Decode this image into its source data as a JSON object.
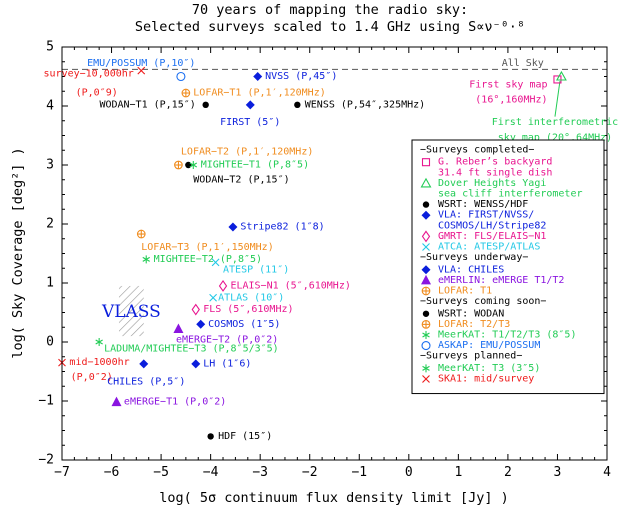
{
  "chart_data": {
    "type": "scatter",
    "title_line1": "70 years of mapping the radio sky:",
    "title_line2": "Selected surveys scaled to 1.4 GHz using S∝ν⁻⁰·⁸",
    "xlabel": "log( 5σ continuum flux density limit [Jy] )",
    "ylabel": "log( Sky Coverage [deg²] )",
    "xlim": [
      -7,
      4
    ],
    "ylim": [
      -2,
      5
    ],
    "xticks": [
      -7,
      -6,
      -5,
      -4,
      -3,
      -2,
      -1,
      0,
      1,
      2,
      3,
      4
    ],
    "yticks": [
      -2,
      -1,
      0,
      1,
      2,
      3,
      4,
      5
    ],
    "all_sky": {
      "y": 4.62,
      "label": "All Sky"
    },
    "vlass": {
      "label": "VLASS",
      "x0": -5.85,
      "x1": -5.35,
      "y0": 0.1,
      "y1": 0.95
    },
    "colors": {
      "reber": "#e8158f",
      "dover": "#22cc55",
      "wsrt": "#000000",
      "vla": "#0a1edc",
      "gmrt": "#e8158f",
      "atca": "#22c8e6",
      "emerlin": "#8a14e0",
      "lofar": "#f08c1e",
      "meerkat": "#22cc55",
      "askap": "#1a6ef0",
      "ska": "#ee1a1a"
    },
    "points": [
      {
        "series": "askap",
        "marker": "circle-open",
        "x": -4.6,
        "y": 4.5,
        "label": "EMU/POSSUM (P,10″)",
        "lx": -5.4,
        "ly": 4.72,
        "anchor": "middle"
      },
      {
        "series": "ska",
        "marker": "x",
        "x": -5.4,
        "y": 4.6,
        "label": "survey−10,000hr",
        "lx": -5.55,
        "ly": 4.54,
        "anchor": "end"
      },
      {
        "series": "ska",
        "marker": "none",
        "x": -5.4,
        "y": 4.6,
        "label": "(P,0″9)",
        "lx": -6.3,
        "ly": 4.22,
        "anchor": "middle"
      },
      {
        "series": "lofar",
        "marker": "plus-circle",
        "x": -4.5,
        "y": 4.22,
        "label": "LOFAR−T1 (P,1′,120MHz)",
        "lx": -4.35,
        "ly": 4.22,
        "anchor": "start"
      },
      {
        "series": "vla",
        "marker": "diamond",
        "x": -3.05,
        "y": 4.5,
        "label": "NVSS (P,45″)",
        "lx": -2.9,
        "ly": 4.5,
        "anchor": "start"
      },
      {
        "series": "wsrt",
        "marker": "dot",
        "x": -4.1,
        "y": 4.02,
        "label": "WODAN−T1 (P,15″)",
        "lx": -4.3,
        "ly": 4.02,
        "anchor": "end"
      },
      {
        "series": "vla",
        "marker": "diamond",
        "x": -3.2,
        "y": 4.02,
        "label": "FIRST (5″)",
        "lx": -3.2,
        "ly": 3.72,
        "anchor": "middle"
      },
      {
        "series": "wsrt",
        "marker": "dot",
        "x": -2.25,
        "y": 4.02,
        "label": "WENSS (P,54″,325MHz)",
        "lx": -2.1,
        "ly": 4.02,
        "anchor": "start"
      },
      {
        "series": "reber",
        "marker": "square-open",
        "x": 3.0,
        "y": 4.45,
        "label": "First sky map",
        "lx": 2.8,
        "ly": 4.36,
        "anchor": "end"
      },
      {
        "series": "reber",
        "marker": "none",
        "x": 3.0,
        "y": 4.45,
        "label": "(16°,160MHz)",
        "lx": 2.8,
        "ly": 4.1,
        "anchor": "end"
      },
      {
        "series": "dover",
        "marker": "triangle-open",
        "x": 3.08,
        "y": 4.5,
        "label": "First interferometric",
        "lx": 2.95,
        "ly": 3.72,
        "anchor": "middle"
      },
      {
        "series": "dover",
        "marker": "none",
        "x": 3.08,
        "y": 4.5,
        "label": "sky map (20°,64MHz)",
        "lx": 2.95,
        "ly": 3.46,
        "anchor": "middle"
      },
      {
        "series": "lofar",
        "marker": "plus-circle",
        "x": -4.65,
        "y": 3.0,
        "label": "LOFAR−T2 (P,1′,120MHz)",
        "lx": -4.6,
        "ly": 3.22,
        "anchor": "start"
      },
      {
        "series": "wsrt",
        "marker": "dot",
        "x": -4.45,
        "y": 3.0,
        "label": "",
        "lx": 0,
        "ly": 0,
        "anchor": "start"
      },
      {
        "series": "meerkat",
        "marker": "asterisk",
        "x": -4.35,
        "y": 3.0,
        "label": "MIGHTEE−T1 (P,8″5)",
        "lx": -4.2,
        "ly": 3.0,
        "anchor": "start"
      },
      {
        "series": "wsrt",
        "marker": "none",
        "x": -4.45,
        "y": 3.0,
        "label": "WODAN−T2 (P,15″)",
        "lx": -4.35,
        "ly": 2.75,
        "anchor": "start"
      },
      {
        "series": "vla",
        "marker": "diamond",
        "x": -3.55,
        "y": 1.95,
        "label": "Stripe82 (1″8)",
        "lx": -3.4,
        "ly": 1.95,
        "anchor": "start"
      },
      {
        "series": "lofar",
        "marker": "plus-circle",
        "x": -5.4,
        "y": 1.83,
        "label": "LOFAR−T3 (P,1′,150MHz)",
        "lx": -5.4,
        "ly": 1.6,
        "anchor": "start"
      },
      {
        "series": "meerkat",
        "marker": "asterisk",
        "x": -5.3,
        "y": 1.4,
        "label": "MIGHTEE−T2 (P,8″5)",
        "lx": -5.15,
        "ly": 1.4,
        "anchor": "start"
      },
      {
        "series": "atca",
        "marker": "x",
        "x": -3.9,
        "y": 1.35,
        "label": "ATESP (11″)",
        "lx": -3.75,
        "ly": 1.22,
        "anchor": "start"
      },
      {
        "series": "gmrt",
        "marker": "diamond-open",
        "x": -3.75,
        "y": 0.95,
        "label": "ELAIS−N1 (5″,610MHz)",
        "lx": -3.6,
        "ly": 0.95,
        "anchor": "start"
      },
      {
        "series": "atca",
        "marker": "x",
        "x": -3.95,
        "y": 0.75,
        "label": "ATLAS (10″)",
        "lx": -3.85,
        "ly": 0.75,
        "anchor": "start"
      },
      {
        "series": "gmrt",
        "marker": "diamond-open",
        "x": -4.3,
        "y": 0.55,
        "label": "FLS (5″,610MHz)",
        "lx": -4.15,
        "ly": 0.55,
        "anchor": "start"
      },
      {
        "series": "vla",
        "marker": "diamond",
        "x": -4.2,
        "y": 0.3,
        "label": "COSMOS (1″5)",
        "lx": -4.05,
        "ly": 0.3,
        "anchor": "start"
      },
      {
        "series": "emerlin",
        "marker": "triangle",
        "x": -4.65,
        "y": 0.22,
        "label": "",
        "lx": 0,
        "ly": 0,
        "anchor": "start"
      },
      {
        "series": "emerlin",
        "marker": "none",
        "x": -4.65,
        "y": 0.22,
        "label": "eMERGE−T2 (P,0″2)",
        "lx": -4.7,
        "ly": 0.03,
        "anchor": "start"
      },
      {
        "series": "meerkat",
        "marker": "asterisk",
        "x": -6.25,
        "y": 0.0,
        "label": "LADUMA/MIGHTEE−T3 (P,8″5/3″5)",
        "lx": -6.15,
        "ly": -0.12,
        "anchor": "start"
      },
      {
        "series": "ska",
        "marker": "x",
        "x": -7.0,
        "y": -0.35,
        "label": "mid−1000hr",
        "lx": -6.85,
        "ly": -0.35,
        "anchor": "start"
      },
      {
        "series": "ska",
        "marker": "none",
        "x": -7.0,
        "y": -0.35,
        "label": "(P,0″2)",
        "lx": -6.4,
        "ly": -0.6,
        "anchor": "middle"
      },
      {
        "series": "vla",
        "marker": "diamond",
        "x": -5.35,
        "y": -0.37,
        "label": "CHILES (P,5″)",
        "lx": -5.3,
        "ly": -0.68,
        "anchor": "middle"
      },
      {
        "series": "vla",
        "marker": "diamond",
        "x": -4.3,
        "y": -0.37,
        "label": "LH (1″6)",
        "lx": -4.15,
        "ly": -0.37,
        "anchor": "start"
      },
      {
        "series": "emerlin",
        "marker": "triangle",
        "x": -5.9,
        "y": -1.02,
        "label": "eMERGE−T1 (P,0″2)",
        "lx": -5.75,
        "ly": -1.02,
        "anchor": "start"
      },
      {
        "series": "wsrt",
        "marker": "dot",
        "x": -4.0,
        "y": -1.6,
        "label": "HDF (15″)",
        "lx": -3.85,
        "ly": -1.6,
        "anchor": "start"
      }
    ],
    "legend": {
      "placement": "right",
      "entries": [
        {
          "kind": "header",
          "text": "−Surveys completed−"
        },
        {
          "kind": "item",
          "series": "reber",
          "marker": "square-open",
          "lines": [
            "G. Reber’s backyard",
            "31.4 ft single dish"
          ]
        },
        {
          "kind": "item",
          "series": "dover",
          "marker": "triangle-open",
          "lines": [
            "Dover Heights Yagi",
            "sea cliff interferometer"
          ]
        },
        {
          "kind": "item",
          "series": "wsrt",
          "marker": "dot",
          "lines": [
            "WSRT: WENSS/HDF"
          ]
        },
        {
          "kind": "item",
          "series": "vla",
          "marker": "diamond",
          "lines": [
            "VLA: FIRST/NVSS/",
            "COSMOS/LH/Stripe82"
          ]
        },
        {
          "kind": "item",
          "series": "gmrt",
          "marker": "diamond-open",
          "lines": [
            "GMRT: FLS/ELAIS−N1"
          ]
        },
        {
          "kind": "item",
          "series": "atca",
          "marker": "x",
          "lines": [
            "ATCA: ATESP/ATLAS"
          ]
        },
        {
          "kind": "header",
          "text": "−Surveys underway−"
        },
        {
          "kind": "item",
          "series": "vla",
          "marker": "diamond",
          "lines": [
            "VLA: CHILES"
          ]
        },
        {
          "kind": "item",
          "series": "emerlin",
          "marker": "triangle",
          "lines": [
            "eMERLIN: eMERGE T1/T2"
          ]
        },
        {
          "kind": "item",
          "series": "lofar",
          "marker": "plus-circle",
          "lines": [
            "LOFAR: T1"
          ]
        },
        {
          "kind": "header",
          "text": "−Surveys coming soon−"
        },
        {
          "kind": "item",
          "series": "wsrt",
          "marker": "dot",
          "lines": [
            "WSRT: WODAN"
          ]
        },
        {
          "kind": "item",
          "series": "lofar",
          "marker": "plus-circle",
          "lines": [
            "LOFAR: T2/T3"
          ]
        },
        {
          "kind": "item",
          "series": "meerkat",
          "marker": "asterisk",
          "lines": [
            "MeerKAT: T1/T2/T3 (8″5)"
          ]
        },
        {
          "kind": "item",
          "series": "askap",
          "marker": "circle-open",
          "lines": [
            "ASKAP: EMU/POSSUM"
          ]
        },
        {
          "kind": "header",
          "text": "−Surveys planned−"
        },
        {
          "kind": "item",
          "series": "meerkat",
          "marker": "asterisk",
          "lines": [
            "MeerKAT: T3 (3″5)"
          ]
        },
        {
          "kind": "item",
          "series": "ska",
          "marker": "x",
          "lines": [
            "SKA1: mid/survey"
          ]
        }
      ]
    }
  }
}
